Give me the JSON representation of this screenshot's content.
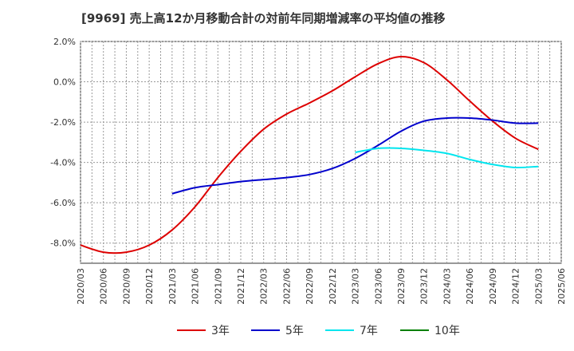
{
  "chart_data": {
    "type": "line",
    "title": "[9969]  売上高12か月移動合計の対前年同期増減率の平均値の推移",
    "x_ticks": [
      "2020/03",
      "2020/06",
      "2020/09",
      "2020/12",
      "2021/03",
      "2021/06",
      "2021/09",
      "2021/12",
      "2022/03",
      "2022/06",
      "2022/09",
      "2022/12",
      "2023/03",
      "2023/06",
      "2023/09",
      "2023/12",
      "2024/03",
      "2024/06",
      "2024/09",
      "2024/12",
      "2025/03",
      "2025/06"
    ],
    "y_ticks": [
      2.0,
      0.0,
      -2.0,
      -4.0,
      -6.0,
      -8.0
    ],
    "y_tick_labels": [
      "2.0%",
      "0.0%",
      "-2.0%",
      "-4.0%",
      "-6.0%",
      "-8.0%"
    ],
    "ylim": [
      -9.0,
      2.0
    ],
    "grid": true,
    "legend_position": "bottom",
    "series": [
      {
        "name": "3年",
        "color": "#dd0000",
        "x": [
          "2020/03",
          "2020/06",
          "2020/09",
          "2020/12",
          "2021/03",
          "2021/06",
          "2021/09",
          "2021/12",
          "2022/03",
          "2022/06",
          "2022/09",
          "2022/12",
          "2023/03",
          "2023/06",
          "2023/09",
          "2023/12",
          "2024/03",
          "2024/06",
          "2024/09",
          "2024/12",
          "2025/03"
        ],
        "values": [
          -8.1,
          -8.45,
          -8.45,
          -8.1,
          -7.35,
          -6.2,
          -4.75,
          -3.45,
          -2.35,
          -1.6,
          -1.05,
          -0.45,
          0.25,
          0.9,
          1.25,
          0.95,
          0.1,
          -0.95,
          -1.95,
          -2.8,
          -3.35
        ]
      },
      {
        "name": "5年",
        "color": "#0000cc",
        "x": [
          "2021/03",
          "2021/06",
          "2021/09",
          "2021/12",
          "2022/03",
          "2022/06",
          "2022/09",
          "2022/12",
          "2023/03",
          "2023/06",
          "2023/09",
          "2023/12",
          "2024/03",
          "2024/06",
          "2024/09",
          "2024/12",
          "2025/03"
        ],
        "values": [
          -5.55,
          -5.25,
          -5.1,
          -4.95,
          -4.85,
          -4.75,
          -4.6,
          -4.3,
          -3.8,
          -3.15,
          -2.45,
          -1.95,
          -1.8,
          -1.8,
          -1.9,
          -2.05,
          -2.05
        ]
      },
      {
        "name": "7年",
        "color": "#00e5ee",
        "x": [
          "2023/03",
          "2023/06",
          "2023/09",
          "2023/12",
          "2024/03",
          "2024/06",
          "2024/09",
          "2024/12",
          "2025/03"
        ],
        "values": [
          -3.5,
          -3.3,
          -3.3,
          -3.4,
          -3.55,
          -3.85,
          -4.1,
          -4.25,
          -4.2
        ]
      },
      {
        "name": "10年",
        "color": "#008000",
        "x": [],
        "values": []
      }
    ]
  }
}
